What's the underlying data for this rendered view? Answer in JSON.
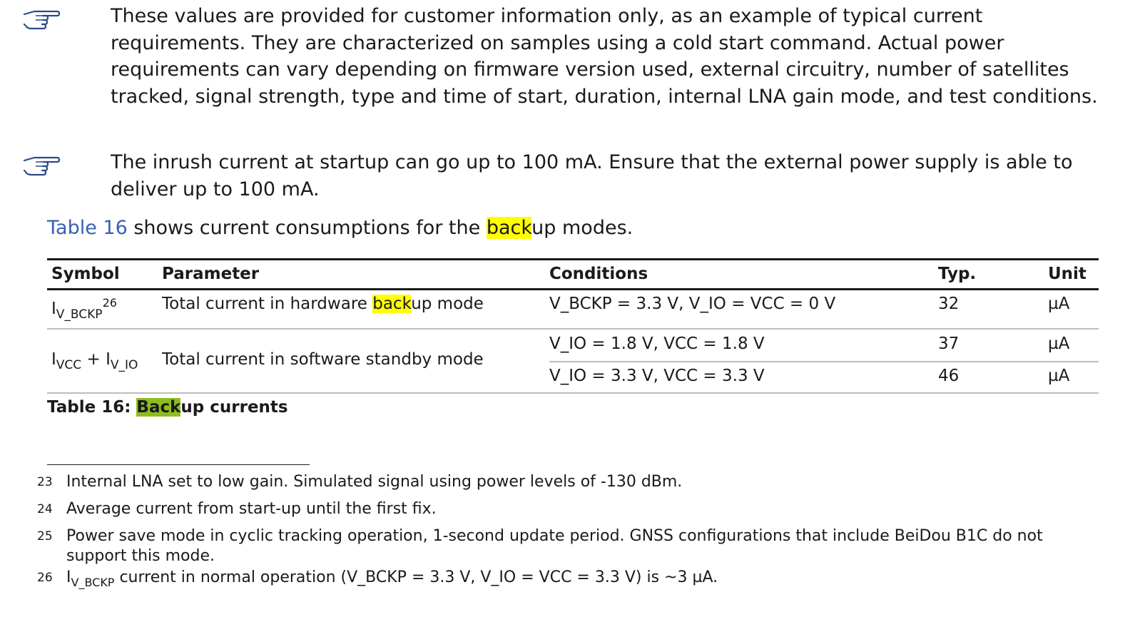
{
  "notes": [
    {
      "icon": "pointing-hand-icon",
      "text": "These values are provided for customer information only, as an example of typical current requirements. They are characterized on samples using a cold start command. Actual power requirements can vary depending on firmware version used, external circuitry, number of satellites tracked, signal strength, type and time of start, duration, internal LNA gain mode, and test conditions."
    },
    {
      "icon": "pointing-hand-icon",
      "text": "The inrush current at startup can go up to 100 mA. Ensure that the external power supply is able to deliver up to 100 mA."
    }
  ],
  "lead": {
    "ref": "Table 16",
    "text1": " shows current consumptions for the ",
    "highlight": "back",
    "text2": "up modes."
  },
  "table": {
    "headers": [
      "Symbol",
      "Parameter",
      "Conditions",
      "Typ.",
      "Unit"
    ],
    "row1": {
      "symbol_main": "I",
      "symbol_sub": "V_BCKP",
      "symbol_sup": "26",
      "param_pre": "Total current in hardware ",
      "param_hl": "back",
      "param_post": "up mode",
      "conditions": "V_BCKP = 3.3 V, V_IO = VCC = 0 V",
      "typ": "32",
      "unit": "µA"
    },
    "row2": {
      "symbol_a": "I",
      "symbol_a_sub": "VCC",
      "symbol_plus": " + I",
      "symbol_b_sub": "V_IO",
      "param": "Total current in software standby mode",
      "sub_rows": [
        {
          "conditions": "V_IO = 1.8 V, VCC = 1.8 V",
          "typ": "37",
          "unit": "µA"
        },
        {
          "conditions": "V_IO = 3.3 V, VCC = 3.3 V",
          "typ": "46",
          "unit": "µA"
        }
      ]
    }
  },
  "caption": {
    "prefix": "Table 16: ",
    "highlight": "Back",
    "suffix": "up currents"
  },
  "footnotes": [
    {
      "num": "23",
      "text": "Internal LNA set to low gain. Simulated signal using power levels of -130 dBm."
    },
    {
      "num": "24",
      "text": "Average current from start-up until the first fix."
    },
    {
      "num": "25",
      "text": "Power save mode in cyclic tracking operation, 1-second update period. GNSS configurations that include BeiDou B1C do not support this mode."
    },
    {
      "num": "26",
      "text_main": "I",
      "text_sub": "V_BCKP",
      "text_rest": " current in normal operation (V_BCKP = 3.3 V, V_IO = VCC = 3.3 V) is ~3 µA."
    }
  ]
}
